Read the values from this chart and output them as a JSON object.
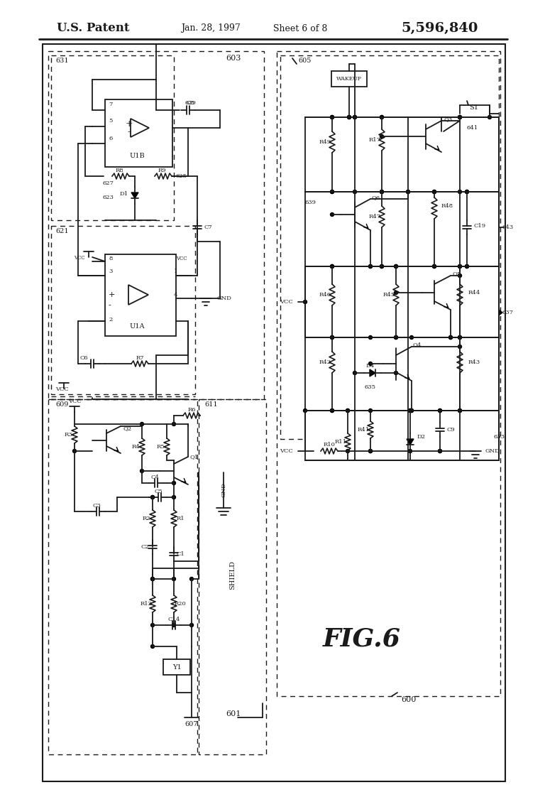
{
  "patent_text": "U.S. Patent",
  "date_text": "Jan. 28, 1997",
  "sheet_text": "Sheet 6 of 8",
  "patent_num": "5,596,840",
  "fig_label": "FIG.6",
  "bg_color": "#ffffff",
  "line_color": "#1a1a1a"
}
